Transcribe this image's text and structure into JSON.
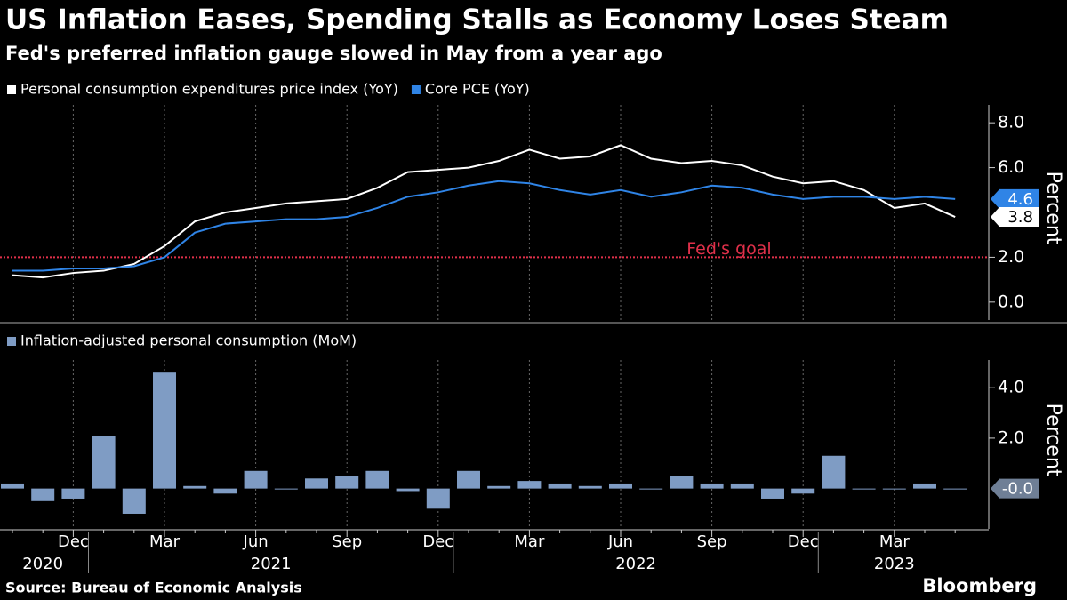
{
  "title": "US Inflation Eases, Spending Stalls as Economy Loses Steam",
  "subtitle": "Fed's preferred inflation gauge slowed in May from a year ago",
  "source": "Source: Bureau of Economic Analysis",
  "logo": "Bloomberg",
  "chart_data": [
    {
      "type": "line",
      "y_label": "Percent",
      "ylim": [
        -0.8,
        8.8
      ],
      "yticks": [
        {
          "value": 0,
          "label": "0.0"
        },
        {
          "value": 2,
          "label": "2.0"
        },
        {
          "value": 6,
          "label": "6.0"
        },
        {
          "value": 8,
          "label": "8.0"
        }
      ],
      "goal": {
        "value": 2,
        "label": "Fed's goal",
        "color": "#e0304a"
      },
      "series": [
        {
          "name": "Personal consumption expenditures price index (YoY)",
          "color": "#ffffff",
          "values": [
            1.2,
            1.1,
            1.3,
            1.4,
            1.7,
            2.5,
            3.6,
            4.0,
            4.2,
            4.4,
            4.5,
            4.6,
            5.1,
            5.8,
            5.9,
            6.0,
            6.3,
            6.8,
            6.4,
            6.5,
            7.0,
            6.4,
            6.2,
            6.3,
            6.1,
            5.6,
            5.3,
            5.4,
            5.0,
            4.2,
            4.4,
            3.8
          ]
        },
        {
          "name": "Core PCE (YoY)",
          "color": "#2f84e6",
          "values": [
            1.4,
            1.4,
            1.5,
            1.5,
            1.6,
            2.0,
            3.1,
            3.5,
            3.6,
            3.7,
            3.7,
            3.8,
            4.2,
            4.7,
            4.9,
            5.2,
            5.4,
            5.3,
            5.0,
            4.8,
            5.0,
            4.7,
            4.9,
            5.2,
            5.1,
            4.8,
            4.6,
            4.7,
            4.7,
            4.6,
            4.7,
            4.6
          ]
        }
      ]
    },
    {
      "type": "bar",
      "y_label": "Percent",
      "ylim": [
        -1.6,
        5.1
      ],
      "yticks": [
        {
          "value": 2,
          "label": "2.0"
        },
        {
          "value": 4,
          "label": "4.0"
        }
      ],
      "categories": [
        null,
        null,
        "Dec",
        null,
        null,
        "Mar",
        null,
        null,
        "Jun",
        null,
        null,
        "Sep",
        null,
        null,
        "Dec",
        null,
        null,
        "Mar",
        null,
        null,
        "Jun",
        null,
        null,
        "Sep",
        null,
        null,
        "Dec",
        null,
        null,
        "Mar",
        null,
        null
      ],
      "years": [
        {
          "year": "2020",
          "months": 3
        },
        {
          "year": "2021",
          "months": 12
        },
        {
          "year": "2022",
          "months": 12
        },
        {
          "year": "2023",
          "months": 5
        }
      ],
      "series": [
        {
          "name": "Inflation-adjusted personal consumption (MoM)",
          "color": "#7f9cc4",
          "values": [
            0.2,
            -0.5,
            -0.4,
            2.1,
            -1.0,
            4.6,
            0.1,
            -0.2,
            0.7,
            0.0,
            0.4,
            0.5,
            0.7,
            -0.1,
            -0.8,
            0.7,
            0.1,
            0.3,
            0.2,
            0.1,
            0.2,
            0.0,
            0.5,
            0.2,
            0.2,
            -0.4,
            -0.2,
            1.3,
            0.0,
            0.0,
            0.2,
            -0.0
          ],
          "value_labels": [
            null,
            null,
            null,
            null,
            null,
            null,
            null,
            null,
            null,
            null,
            null,
            null,
            null,
            null,
            null,
            null,
            null,
            null,
            null,
            null,
            null,
            null,
            null,
            null,
            null,
            null,
            null,
            null,
            null,
            null,
            null,
            "-0.0"
          ]
        }
      ]
    }
  ]
}
